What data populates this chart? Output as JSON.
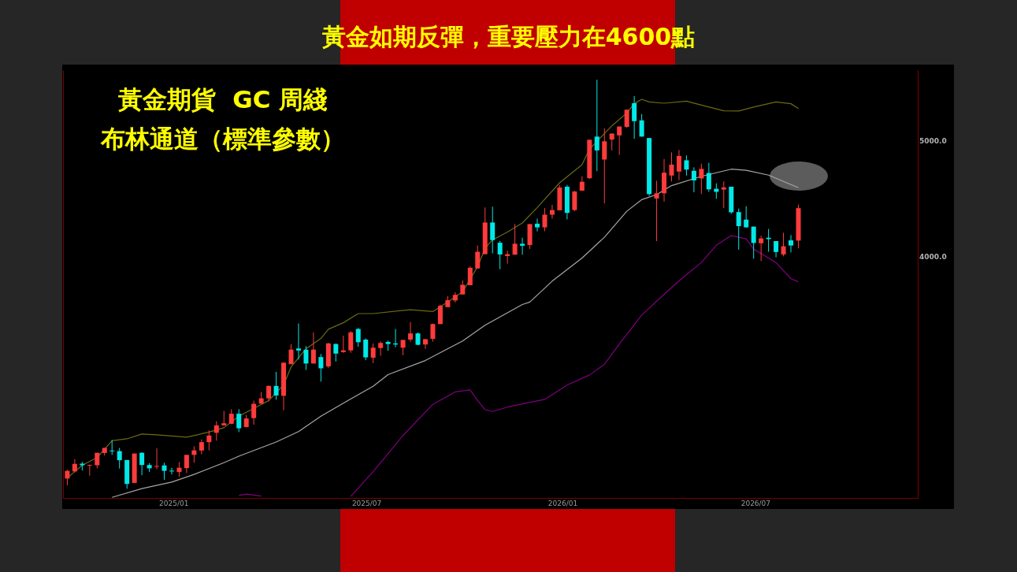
{
  "chart_data": {
    "type": "candlestick",
    "title": "黃金如期反彈，重要壓力在4600點",
    "subtitle": "黃金期貨  GC 周綫",
    "annotations": [
      "布林通道（標準參數）"
    ],
    "x": [
      "2024-09-23",
      "2024-09-30",
      "2024-10-07",
      "2024-10-14",
      "2024-10-21",
      "2024-10-28",
      "2024-11-04",
      "2024-11-11",
      "2024-11-18",
      "2024-11-25",
      "2024-12-02",
      "2024-12-09",
      "2024-12-16",
      "2024-12-23",
      "2024-12-30",
      "2025-01-06",
      "2025-01-13",
      "2025-01-20",
      "2025-01-27",
      "2025-02-03",
      "2025-02-10",
      "2025-02-17",
      "2025-02-24",
      "2025-03-03",
      "2025-03-10",
      "2025-03-17",
      "2025-03-24",
      "2025-03-31",
      "2025-04-07",
      "2025-04-14",
      "2025-04-21",
      "2025-04-28",
      "2025-05-05",
      "2025-05-12",
      "2025-05-19",
      "2025-05-26",
      "2025-06-02",
      "2025-06-09",
      "2025-06-16",
      "2025-06-23",
      "2025-06-30",
      "2025-07-07",
      "2025-07-14",
      "2025-07-21",
      "2025-07-28",
      "2025-08-04",
      "2025-08-11",
      "2025-08-18",
      "2025-08-25",
      "2025-09-01",
      "2025-09-08",
      "2025-09-15",
      "2025-09-22",
      "2025-09-29",
      "2025-10-06",
      "2025-10-13",
      "2025-10-20",
      "2025-10-27",
      "2025-11-03",
      "2025-11-10",
      "2025-11-17",
      "2025-11-24",
      "2025-12-01",
      "2025-12-08",
      "2025-12-15",
      "2025-12-22",
      "2025-12-29",
      "2026-01-05",
      "2026-01-12",
      "2026-01-19",
      "2026-01-26",
      "2026-02-02",
      "2026-02-09",
      "2026-02-16",
      "2026-02-23",
      "2026-03-02",
      "2026-03-09",
      "2026-03-16",
      "2026-03-23",
      "2026-03-30",
      "2026-04-06",
      "2026-04-13",
      "2026-04-20",
      "2026-04-27",
      "2026-05-04",
      "2026-05-11",
      "2026-05-18",
      "2026-05-25",
      "2026-06-01",
      "2026-06-08",
      "2026-06-15",
      "2026-06-22",
      "2026-06-29",
      "2026-07-06",
      "2026-07-13",
      "2026-07-20",
      "2026-07-27",
      "2026-08-03",
      "2026-08-10"
    ],
    "ohlc": [
      [
        2611,
        2655,
        2577,
        2650
      ],
      [
        2647,
        2710,
        2642,
        2686
      ],
      [
        2687,
        2696,
        2652,
        2679
      ],
      [
        2676,
        2683,
        2626,
        2680
      ],
      [
        2679,
        2744,
        2663,
        2744
      ],
      [
        2743,
        2770,
        2729,
        2770
      ],
      [
        2756,
        2812,
        2733,
        2752
      ],
      [
        2753,
        2770,
        2662,
        2705
      ],
      [
        2706,
        2706,
        2560,
        2584
      ],
      [
        2589,
        2740,
        2589,
        2740
      ],
      [
        2744,
        2747,
        2628,
        2680
      ],
      [
        2680,
        2690,
        2644,
        2663
      ],
      [
        2671,
        2768,
        2658,
        2675
      ],
      [
        2678,
        2692,
        2605,
        2650
      ],
      [
        2651,
        2666,
        2632,
        2647
      ],
      [
        2644,
        2695,
        2620,
        2666
      ],
      [
        2664,
        2733,
        2639,
        2733
      ],
      [
        2733,
        2778,
        2692,
        2757
      ],
      [
        2756,
        2816,
        2736,
        2801
      ],
      [
        2801,
        2865,
        2757,
        2837
      ],
      [
        2852,
        2916,
        2809,
        2893
      ],
      [
        2893,
        2975,
        2893,
        2905
      ],
      [
        2902,
        2985,
        2899,
        2959
      ],
      [
        2959,
        2985,
        2856,
        2877
      ],
      [
        2884,
        2952,
        2881,
        2932
      ],
      [
        2934,
        3034,
        2897,
        3016
      ],
      [
        3017,
        3085,
        3017,
        3048
      ],
      [
        3048,
        3125,
        3030,
        3122
      ],
      [
        3122,
        3208,
        3040,
        3065
      ],
      [
        3063,
        3268,
        2979,
        3265
      ],
      [
        3256,
        3385,
        3256,
        3349
      ],
      [
        3356,
        3522,
        3285,
        3343
      ],
      [
        3348,
        3371,
        3220,
        3260
      ],
      [
        3260,
        3462,
        3260,
        3349
      ],
      [
        3301,
        3321,
        3148,
        3230
      ],
      [
        3242,
        3394,
        3231,
        3389
      ],
      [
        3385,
        3389,
        3273,
        3323
      ],
      [
        3333,
        3440,
        3328,
        3344
      ],
      [
        3344,
        3471,
        3328,
        3462
      ],
      [
        3485,
        3492,
        3368,
        3397
      ],
      [
        3414,
        3422,
        3281,
        3299
      ],
      [
        3297,
        3389,
        3263,
        3361
      ],
      [
        3359,
        3402,
        3309,
        3392
      ],
      [
        3399,
        3407,
        3341,
        3385
      ],
      [
        3389,
        3485,
        3364,
        3382
      ],
      [
        3361,
        3412,
        3313,
        3412
      ],
      [
        3414,
        3532,
        3400,
        3455
      ],
      [
        3455,
        3461,
        3377,
        3380
      ],
      [
        3382,
        3417,
        3353,
        3417
      ],
      [
        3419,
        3522,
        3401,
        3518
      ],
      [
        3518,
        3653,
        3518,
        3644
      ],
      [
        3635,
        3714,
        3635,
        3684
      ],
      [
        3682,
        3741,
        3667,
        3722
      ],
      [
        3725,
        3827,
        3725,
        3795
      ],
      [
        3792,
        3932,
        3792,
        3922
      ],
      [
        3917,
        4094,
        3917,
        4045
      ],
      [
        4026,
        4406,
        4026,
        4280
      ],
      [
        4280,
        4413,
        4033,
        4137
      ],
      [
        4116,
        4131,
        3911,
        4024
      ],
      [
        4012,
        4053,
        3953,
        4026
      ],
      [
        4022,
        4267,
        4022,
        4108
      ],
      [
        4108,
        4156,
        4022,
        4092
      ],
      [
        4098,
        4267,
        4067,
        4267
      ],
      [
        4270,
        4312,
        4207,
        4240
      ],
      [
        4240,
        4400,
        4209,
        4345
      ],
      [
        4345,
        4428,
        4312,
        4384
      ],
      [
        4382,
        4598,
        4382,
        4579
      ],
      [
        4586,
        4602,
        4306,
        4360
      ],
      [
        4384,
        4549,
        4374,
        4544
      ],
      [
        4551,
        4679,
        4551,
        4630
      ],
      [
        4662,
        5021,
        4655,
        5021
      ],
      [
        5052,
        5638,
        4726,
        4919
      ],
      [
        4833,
        5133,
        4440,
        5006
      ],
      [
        5023,
        5082,
        4919,
        5082
      ],
      [
        5064,
        5151,
        4876,
        5151
      ],
      [
        5148,
        5321,
        5138,
        5321
      ],
      [
        5388,
        5462,
        5031,
        5205
      ],
      [
        5213,
        5276,
        5052,
        5052
      ],
      [
        5038,
        5038,
        4505,
        4521
      ],
      [
        4483,
        4639,
        4129,
        4528
      ],
      [
        4528,
        4838,
        4456,
        4712
      ],
      [
        4686,
        4901,
        4634,
        4786
      ],
      [
        4722,
        4923,
        4644,
        4867
      ],
      [
        4826,
        4872,
        4686,
        4740
      ],
      [
        4729,
        4761,
        4537,
        4642
      ],
      [
        4660,
        4795,
        4523,
        4747
      ],
      [
        4709,
        4802,
        4541,
        4563
      ],
      [
        4568,
        4616,
        4480,
        4541
      ],
      [
        4561,
        4634,
        4400,
        4580
      ],
      [
        4586,
        4586,
        4352,
        4365
      ],
      [
        4367,
        4397,
        4061,
        4250
      ],
      [
        4304,
        4417,
        4238,
        4240
      ],
      [
        4246,
        4246,
        3991,
        4114
      ],
      [
        4112,
        4172,
        3973,
        4150
      ],
      [
        4156,
        4227,
        4045,
        4145
      ],
      [
        4129,
        4129,
        4002,
        4043
      ],
      [
        4024,
        4196,
        4010,
        4088
      ],
      [
        4135,
        4177,
        4040,
        4094
      ],
      [
        4133,
        4430,
        4071,
        4400
      ]
    ],
    "colors": [
      "#ff3b3b",
      "#ff3b3b",
      "#00e8e8",
      "#ff3b3b",
      "#ff3b3b",
      "#ff3b3b",
      "#00e8e8",
      "#00e8e8",
      "#00e8e8",
      "#ff3b3b",
      "#00e8e8",
      "#00e8e8",
      "#ff3b3b",
      "#00e8e8",
      "#00e8e8",
      "#ff3b3b",
      "#ff3b3b",
      "#ff3b3b",
      "#ff3b3b",
      "#ff3b3b",
      "#ff3b3b",
      "#ff3b3b",
      "#ff3b3b",
      "#00e8e8",
      "#ff3b3b",
      "#ff3b3b",
      "#ff3b3b",
      "#ff3b3b",
      "#00e8e8",
      "#ff3b3b",
      "#ff3b3b",
      "#00e8e8",
      "#00e8e8",
      "#ff3b3b",
      "#00e8e8",
      "#ff3b3b",
      "#00e8e8",
      "#ff3b3b",
      "#ff3b3b",
      "#00e8e8",
      "#00e8e8",
      "#ff3b3b",
      "#ff3b3b",
      "#00e8e8",
      "#00e8e8",
      "#ff3b3b",
      "#ff3b3b",
      "#00e8e8",
      "#ff3b3b",
      "#ff3b3b",
      "#ff3b3b",
      "#ff3b3b",
      "#ff3b3b",
      "#ff3b3b",
      "#ff3b3b",
      "#ff3b3b",
      "#ff3b3b",
      "#00e8e8",
      "#00e8e8",
      "#ff3b3b",
      "#ff3b3b",
      "#00e8e8",
      "#ff3b3b",
      "#00e8e8",
      "#ff3b3b",
      "#ff3b3b",
      "#ff3b3b",
      "#00e8e8",
      "#ff3b3b",
      "#ff3b3b",
      "#ff3b3b",
      "#00e8e8",
      "#ff3b3b",
      "#ff3b3b",
      "#ff3b3b",
      "#ff3b3b",
      "#00e8e8",
      "#00e8e8",
      "#00e8e8",
      "#ff3b3b",
      "#ff3b3b",
      "#ff3b3b",
      "#ff3b3b",
      "#00e8e8",
      "#00e8e8",
      "#ff3b3b",
      "#00e8e8",
      "#00e8e8",
      "#ff3b3b",
      "#00e8e8",
      "#00e8e8",
      "#00e8e8",
      "#00e8e8",
      "#ff3b3b",
      "#00e8e8",
      "#00e8e8",
      "#ff3b3b",
      "#00e8e8",
      "#ff3b3b"
    ],
    "series": [
      {
        "type": "line",
        "color": "#6b6b12",
        "x": [
          "2024-09-23",
          "2024-10-07",
          "2024-10-21",
          "2024-11-04",
          "2024-11-18",
          "2024-12-02",
          "2024-12-16",
          "2025-01-13",
          "2025-02-03",
          "2025-02-17",
          "2025-03-03",
          "2025-03-31",
          "2025-04-14",
          "2025-04-21",
          "2025-05-05",
          "2025-05-19",
          "2025-05-26",
          "2025-06-09",
          "2025-06-23",
          "2025-07-07",
          "2025-08-11",
          "2025-09-01",
          "2025-09-15",
          "2025-09-29",
          "2025-10-13",
          "2025-10-20",
          "2025-10-27",
          "2025-11-10",
          "2025-11-24",
          "2025-12-08",
          "2025-12-29",
          "2026-01-19",
          "2026-01-26",
          "2026-02-16",
          "2026-03-02",
          "2026-03-09",
          "2026-03-16",
          "2026-03-23",
          "2026-04-06",
          "2026-04-27",
          "2026-05-11",
          "2026-06-01",
          "2026-06-15",
          "2026-06-29",
          "2026-07-20",
          "2026-08-03",
          "2026-08-10"
        ],
        "values": [
          2614,
          2679,
          2719,
          2809,
          2819,
          2845,
          2841,
          2828,
          2856,
          2880,
          2945,
          3035,
          3128,
          3239,
          3354,
          3422,
          3483,
          3527,
          3590,
          3590,
          3617,
          3604,
          3671,
          3745,
          3929,
          4073,
          4139,
          4202,
          4276,
          4406,
          4621,
          4786,
          4931,
          5158,
          5288,
          5383,
          5429,
          5401,
          5388,
          5409,
          5369,
          5310,
          5308,
          5348,
          5401,
          5383,
          5334
        ]
      },
      {
        "type": "line",
        "color": "#a6a6a6",
        "x": [
          "2024-11-04",
          "2024-12-02",
          "2024-12-30",
          "2025-01-20",
          "2025-02-17",
          "2025-03-03",
          "2025-04-07",
          "2025-04-28",
          "2025-05-19",
          "2025-06-09",
          "2025-07-07",
          "2025-07-21",
          "2025-08-25",
          "2025-09-29",
          "2025-10-20",
          "2025-11-24",
          "2025-12-01",
          "2025-12-22",
          "2026-01-19",
          "2026-02-09",
          "2026-03-02",
          "2026-03-16",
          "2026-03-30",
          "2026-04-13",
          "2026-05-11",
          "2026-06-08",
          "2026-06-22",
          "2026-07-13",
          "2026-07-27",
          "2026-08-10"
        ],
        "values": [
          2518,
          2561,
          2593,
          2632,
          2692,
          2726,
          2802,
          2859,
          2945,
          3020,
          3120,
          3191,
          3279,
          3405,
          3510,
          3653,
          3671,
          3822,
          3996,
          4160,
          4374,
          4473,
          4517,
          4596,
          4679,
          4744,
          4734,
          4690,
          4633,
          4577
        ]
      },
      {
        "type": "line",
        "color": "#800080",
        "x": [
          "2025-03-03",
          "2025-03-10",
          "2025-03-24",
          "2025-04-21",
          "2025-06-16",
          "2025-07-07",
          "2025-08-04",
          "2025-09-01",
          "2025-09-22",
          "2025-10-06",
          "2025-10-13",
          "2025-10-20",
          "2025-10-27",
          "2025-11-10",
          "2025-11-24",
          "2025-12-15",
          "2026-01-05",
          "2026-01-26",
          "2026-02-09",
          "2026-02-23",
          "2026-03-16",
          "2026-04-06",
          "2026-04-20",
          "2026-05-11",
          "2026-05-25",
          "2026-06-08",
          "2026-06-22",
          "2026-06-29",
          "2026-07-20",
          "2026-08-03",
          "2026-08-10"
        ],
        "values": [
          2527,
          2534,
          2524,
          null,
          2522,
          2646,
          2837,
          3013,
          3086,
          3098,
          3035,
          2982,
          2972,
          2997,
          3016,
          3042,
          3127,
          3189,
          3255,
          3385,
          3580,
          3726,
          3824,
          3962,
          4096,
          4173,
          4147,
          4066,
          3962,
          3840,
          3817
        ]
      }
    ],
    "xlim": [
      "2024-09-19",
      "2026-11-30"
    ],
    "xticks": [
      {
        "value": "2025-01",
        "label": "2025/01"
      },
      {
        "value": "2025-07",
        "label": "2025/07"
      },
      {
        "value": "2026-01",
        "label": "2026/01"
      },
      {
        "value": "2026-07",
        "label": "2026/07"
      }
    ],
    "ylim": [
      2515,
      5740
    ],
    "yticks": [
      {
        "value": 4000,
        "label": "4000.0"
      },
      {
        "value": 5000,
        "label": "5000.0"
      }
    ],
    "log": true
  }
}
